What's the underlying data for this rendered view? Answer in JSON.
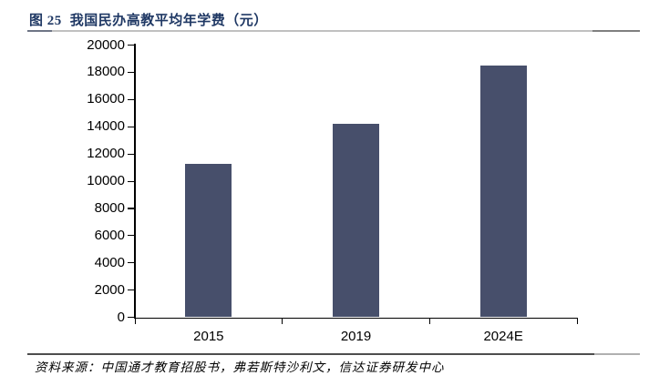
{
  "figure": {
    "title_prefix": "图 25",
    "title_text": "我国民办高教平均年学费（元）",
    "source": "资料来源：中国通才教育招股书，弗若斯特沙利文，信达证券研发中心"
  },
  "colors": {
    "bar": "#474F6B",
    "title": "#1F3864",
    "axis": "#000000",
    "title_rule": "#C0C0C0",
    "source_rule": "#4D4D4D"
  },
  "chart_data": {
    "type": "bar",
    "categories": [
      "2015",
      "2019",
      "2024E"
    ],
    "values": [
      11300,
      14200,
      18500
    ],
    "title": "我国民办高教平均年学费（元）",
    "xlabel": "",
    "ylabel": "",
    "ylim": [
      0,
      20000
    ],
    "ytick_step": 2000,
    "grid": false,
    "legend_position": "none"
  }
}
